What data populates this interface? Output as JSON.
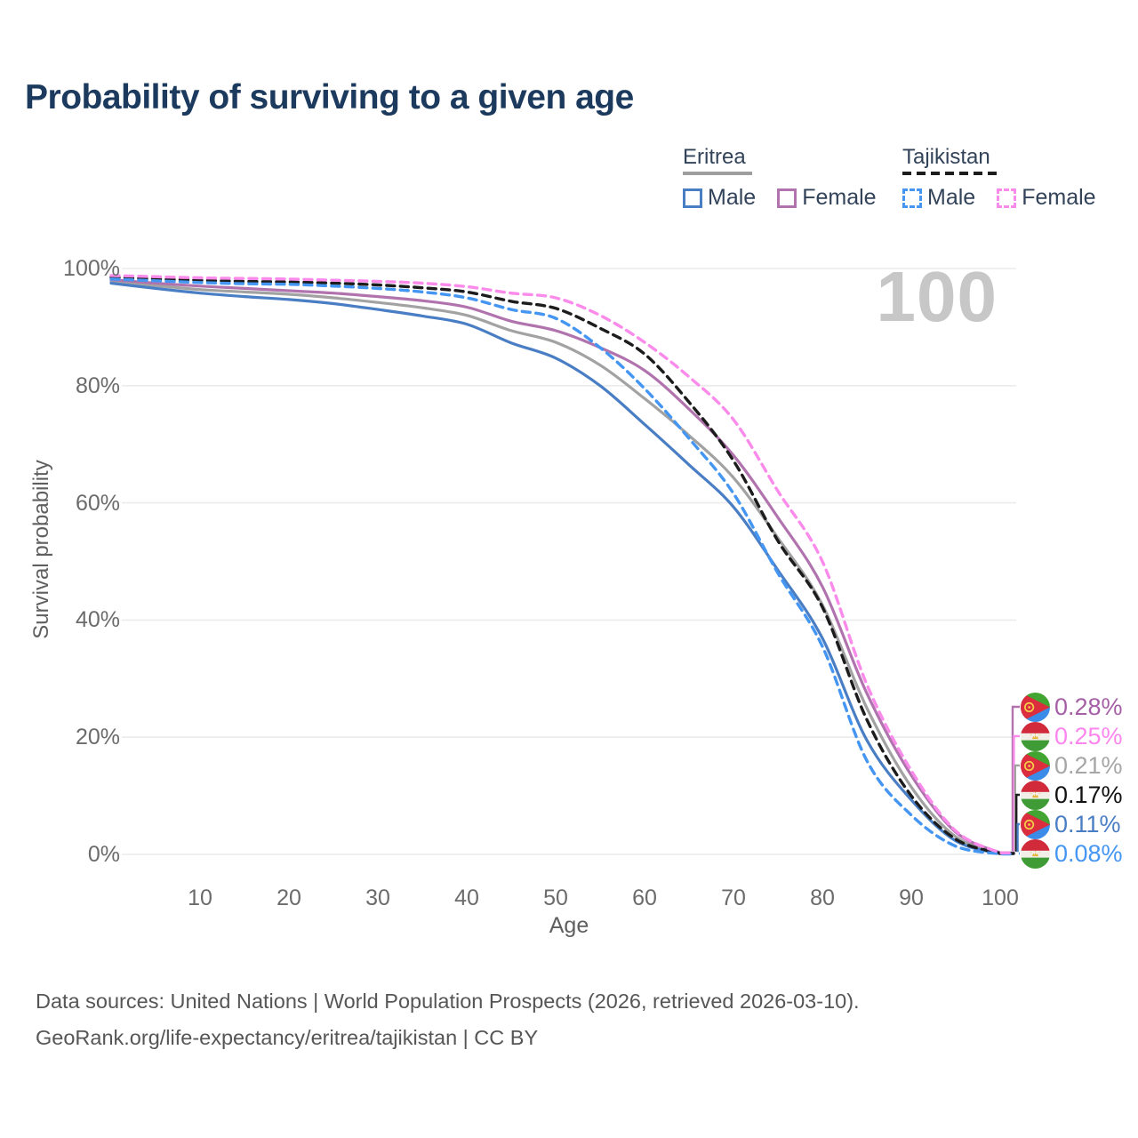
{
  "title": "Probability of surviving to a given age",
  "watermark_age": "100",
  "legend": {
    "groups": [
      {
        "name": "Eritrea",
        "line_style": "solid",
        "line_color": "#9e9e9e",
        "items": [
          {
            "label": "Male",
            "color": "#4a7ec4",
            "dashed": false
          },
          {
            "label": "Female",
            "color": "#b173ae",
            "dashed": false
          }
        ]
      },
      {
        "name": "Tajikistan",
        "line_style": "dashed",
        "line_color": "#1c1c1c",
        "items": [
          {
            "label": "Male",
            "color": "#4496f2",
            "dashed": true
          },
          {
            "label": "Female",
            "color": "#fb8beb",
            "dashed": true
          }
        ]
      }
    ]
  },
  "chart_data": {
    "type": "line",
    "title": "Probability of surviving to a given age",
    "xlabel": "Age",
    "ylabel": "Survival probability",
    "xlim": [
      0,
      100
    ],
    "ylim": [
      0,
      100
    ],
    "grid": "horizontal-only",
    "legend_position": "top-right",
    "x_ticks": [
      10,
      20,
      30,
      40,
      50,
      60,
      70,
      80,
      90,
      100
    ],
    "y_tick_values": [
      100,
      80,
      60,
      40,
      20,
      0
    ],
    "y_tick_labels": [
      "100%",
      "80%",
      "60%",
      "40%",
      "20%",
      "0%"
    ],
    "ages": [
      0,
      5,
      10,
      15,
      20,
      25,
      30,
      35,
      40,
      45,
      50,
      55,
      60,
      65,
      70,
      75,
      80,
      85,
      90,
      95,
      100
    ],
    "series": [
      {
        "name": "Eritrea",
        "country": "Eritrea",
        "sex": "Both",
        "color": "#a2a2a2",
        "dash": "solid",
        "end_label": "0.21%",
        "values": [
          97.8,
          97.1,
          96.4,
          96.0,
          95.6,
          95.0,
          94.2,
          93.3,
          92.0,
          89.4,
          87.4,
          83.5,
          77.8,
          71.5,
          64.3,
          54.0,
          42.6,
          25.0,
          11.5,
          3.0,
          0.21
        ]
      },
      {
        "name": "Eritrea Female",
        "country": "Eritrea",
        "sex": "Female",
        "color": "#b173ae",
        "dash": "solid",
        "end_label": "0.28%",
        "values": [
          98.1,
          97.5,
          97.0,
          96.6,
          96.2,
          95.8,
          95.2,
          94.5,
          93.4,
          91.0,
          89.4,
          86.5,
          82.6,
          76.0,
          68.1,
          57.5,
          45.7,
          27.5,
          13.5,
          3.8,
          0.28
        ]
      },
      {
        "name": "Eritrea Male",
        "country": "Eritrea",
        "sex": "Male",
        "color": "#4a7ec4",
        "dash": "solid",
        "end_label": "0.11%",
        "values": [
          97.5,
          96.6,
          95.8,
          95.2,
          94.7,
          94.0,
          93.0,
          91.9,
          90.5,
          87.3,
          84.7,
          80.0,
          73.4,
          66.5,
          59.3,
          48.5,
          36.9,
          19.5,
          9.3,
          2.3,
          0.11
        ]
      },
      {
        "name": "Tajikistan",
        "country": "Tajikistan",
        "sex": "Both",
        "color": "#1c1c1c",
        "dash": "dashed",
        "end_label": "0.17%",
        "values": [
          98.5,
          98.2,
          98.0,
          97.8,
          97.7,
          97.5,
          97.2,
          96.7,
          96.0,
          94.4,
          93.2,
          89.8,
          85.4,
          77.2,
          67.2,
          53.5,
          42.2,
          23.0,
          10.0,
          2.6,
          0.17
        ]
      },
      {
        "name": "Tajikistan Male",
        "country": "Tajikistan",
        "sex": "Male",
        "color": "#4496f2",
        "dash": "dashed",
        "end_label": "0.08%",
        "values": [
          98.2,
          97.9,
          97.6,
          97.4,
          97.3,
          97.0,
          96.6,
          96.0,
          95.0,
          93.0,
          91.5,
          86.5,
          79.5,
          71.0,
          61.6,
          48.0,
          35.5,
          16.0,
          6.7,
          1.4,
          0.08
        ]
      },
      {
        "name": "Tajikistan Female",
        "country": "Tajikistan",
        "sex": "Female",
        "color": "#fb8beb",
        "dash": "dashed",
        "end_label": "0.25%",
        "values": [
          98.8,
          98.6,
          98.4,
          98.3,
          98.2,
          98.0,
          97.8,
          97.5,
          96.9,
          95.8,
          95.0,
          92.0,
          87.4,
          81.5,
          74.2,
          62.0,
          50.0,
          29.0,
          14.3,
          4.0,
          0.25
        ]
      }
    ]
  },
  "end_labels": [
    {
      "text": "0.28%",
      "color": "#a55fa5",
      "flag": "eritrea",
      "series": "Eritrea Female"
    },
    {
      "text": "0.25%",
      "color": "#fb86ee",
      "flag": "tajikistan",
      "series": "Tajikistan Female"
    },
    {
      "text": "0.21%",
      "color": "#a6a6a6",
      "flag": "eritrea",
      "series": "Eritrea"
    },
    {
      "text": "0.17%",
      "color": "#111111",
      "flag": "tajikistan",
      "series": "Tajikistan"
    },
    {
      "text": "0.11%",
      "color": "#4a7ec4",
      "flag": "eritrea",
      "series": "Eritrea Male"
    },
    {
      "text": "0.08%",
      "color": "#4496f2",
      "flag": "tajikistan",
      "series": "Tajikistan Male"
    }
  ],
  "x_axis": {
    "label": "Age",
    "ticks": [
      "10",
      "20",
      "30",
      "40",
      "50",
      "60",
      "70",
      "80",
      "90",
      "100"
    ]
  },
  "y_axis": {
    "label": "Survival probability",
    "ticks": [
      "100%",
      "80%",
      "60%",
      "40%",
      "20%",
      "0%"
    ]
  },
  "footer": {
    "line1": "Data sources: United Nations | World Population Prospects (2026, retrieved 2026-03-10).",
    "line2": "GeoRank.org/life-expectancy/eritrea/tajikistan | CC BY"
  }
}
